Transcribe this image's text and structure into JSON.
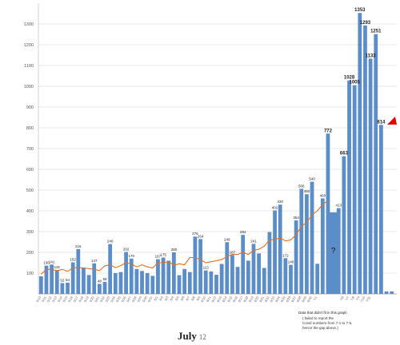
{
  "chart_data": {
    "type": "bar",
    "xlabel": "",
    "ylabel": "",
    "ylim": [
      0,
      1400
    ],
    "yticks": [
      100,
      200,
      300,
      400,
      500,
      600,
      700,
      800,
      900,
      1000,
      1100,
      1200,
      1300
    ],
    "grid": true,
    "bar_color": "#5b8ec9",
    "trend_color": "#e07020",
    "accent_color": "#e00000",
    "values": [
      85,
      136,
      141,
      115,
      52,
      54,
      152,
      216,
      125,
      91,
      147,
      48,
      58,
      240,
      100,
      105,
      202,
      170,
      120,
      110,
      100,
      87,
      167,
      175,
      160,
      200,
      90,
      120,
      105,
      276,
      264,
      113,
      108,
      92,
      144,
      249,
      187,
      130,
      284,
      160,
      241,
      195,
      125,
      298,
      402,
      430,
      172,
      140,
      354,
      506,
      480,
      540,
      145,
      460,
      772,
      393,
      413,
      663,
      1028,
      1005,
      1353,
      1293,
      1133,
      1251,
      814,
      12,
      12
    ],
    "value_labels": [
      "",
      "136",
      "141",
      "115",
      "52",
      "54",
      "152",
      "216",
      "",
      "",
      "147",
      "48",
      "58",
      "240",
      "",
      "",
      "202",
      "170",
      "",
      "",
      "",
      "",
      "167",
      "175",
      "",
      "200",
      "",
      "",
      "",
      "276",
      "264",
      "113",
      "",
      "",
      "",
      "249",
      "187",
      "",
      "284",
      "",
      "241",
      "",
      "",
      "",
      "402",
      "430",
      "172",
      "140",
      "354",
      "506",
      "480",
      "540",
      "",
      "460",
      "772",
      "?",
      "413",
      "663",
      "1028",
      "1005",
      "1353",
      "1293",
      "1133",
      "1251",
      "814",
      "",
      ""
    ],
    "trend": [
      95,
      118,
      118,
      112,
      118,
      108,
      126,
      126,
      125,
      122,
      118,
      112,
      135,
      140,
      126,
      136,
      150,
      145,
      130,
      140,
      130,
      125,
      150,
      150,
      155,
      138,
      145,
      140,
      175,
      175,
      165,
      150,
      155,
      160,
      165,
      180,
      190,
      190,
      200,
      190,
      210,
      215,
      230,
      260,
      262,
      270,
      255,
      260,
      285,
      325,
      345,
      380,
      400,
      430,
      450
    ],
    "date_labels": [
      "5/10",
      "5/11",
      "5/12",
      "5/13",
      "5/14",
      "5/15",
      "5/16",
      "5/17",
      "5/18",
      "5/19",
      "5/20",
      "5/21",
      "5/22",
      "5/23",
      "5/24",
      "5/25",
      "5/26",
      "5/27",
      "5/28",
      "5/29",
      "5/30",
      "5/31",
      "6/1",
      "6/2",
      "6/3",
      "6/4",
      "6/5",
      "6/6",
      "6/7",
      "6/8",
      "6/9",
      "6/10",
      "6/11",
      "6/12",
      "6/13",
      "6/14",
      "6/15",
      "6/16",
      "6/17",
      "6/18",
      "6/19",
      "6/20",
      "6/21",
      "6/22",
      "6/23",
      "6/24",
      "6/25",
      "6/26",
      "6/27",
      "6/28",
      "6/29",
      "6/30",
      "7/1",
      "",
      "",
      "",
      "",
      "7/6",
      "7/7",
      "7/8",
      "7/9",
      "7/10",
      "7/11",
      "",
      "",
      "",
      ""
    ],
    "annotations": [
      "Data that didn't fit in this graph",
      "( failed to report the Covid numbers from 7-1 to 7-5, hence the gap above.)"
    ]
  },
  "caption": {
    "month": "July",
    "day": "12"
  }
}
